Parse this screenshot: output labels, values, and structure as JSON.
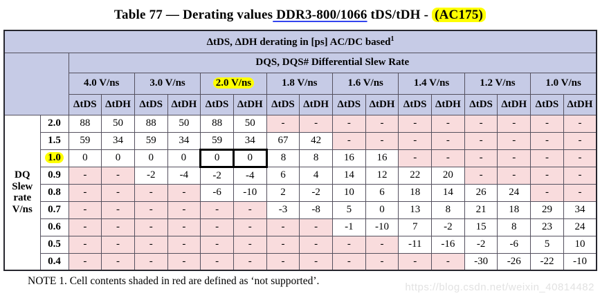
{
  "page": {
    "title": {
      "prefix": "Table 77 — Derating values",
      "link": " DDR3-800/1066",
      "suffix": " tDS/tDH - ",
      "highlight": "(AC175)"
    },
    "note": "NOTE 1. Cell contents shaded in red are defined as ‘not supported’.",
    "watermark": "https://blog.csdn.net/weixin_40814482"
  },
  "table": {
    "header1": "ΔtDS, ΔDH derating in [ps]  AC/DC based",
    "header1_superscript": "1",
    "header2": "DQS, DQS# Differential Slew Rate",
    "axis_label_lines": [
      "DQ",
      "Slew",
      "rate",
      "V/ns"
    ],
    "subheader_labels": {
      "tds": "ΔtDS",
      "tdh": "ΔtDH"
    },
    "col_groups": [
      {
        "label": "4.0 V/ns",
        "highlight": false
      },
      {
        "label": "3.0 V/ns",
        "highlight": false
      },
      {
        "label": "2.0 V/ns",
        "highlight": true
      },
      {
        "label": "1.8 V/ns",
        "highlight": false
      },
      {
        "label": "1.6 V/ns",
        "highlight": false
      },
      {
        "label": "1.4 V/ns",
        "highlight": false
      },
      {
        "label": "1.2 V/ns",
        "highlight": false
      },
      {
        "label": "1.0 V/ns",
        "highlight": false
      }
    ],
    "rows": [
      {
        "label": "2.0",
        "highlight": false,
        "boxed": [],
        "cells": [
          "88",
          "50",
          "88",
          "50",
          "88",
          "50",
          "-",
          "-",
          "-",
          "-",
          "-",
          "-",
          "-",
          "-",
          "-",
          "-"
        ]
      },
      {
        "label": "1.5",
        "highlight": false,
        "boxed": [],
        "cells": [
          "59",
          "34",
          "59",
          "34",
          "59",
          "34",
          "67",
          "42",
          "-",
          "-",
          "-",
          "-",
          "-",
          "-",
          "-",
          "-"
        ]
      },
      {
        "label": "1.0",
        "highlight": true,
        "boxed": [
          4,
          5
        ],
        "cells": [
          "0",
          "0",
          "0",
          "0",
          "0",
          "0",
          "8",
          "8",
          "16",
          "16",
          "-",
          "-",
          "-",
          "-",
          "-",
          "-"
        ]
      },
      {
        "label": "0.9",
        "highlight": false,
        "boxed": [],
        "cells": [
          "-",
          "-",
          "-2",
          "-4",
          "-2",
          "-4",
          "6",
          "4",
          "14",
          "12",
          "22",
          "20",
          "-",
          "-",
          "-",
          "-"
        ]
      },
      {
        "label": "0.8",
        "highlight": false,
        "boxed": [],
        "cells": [
          "-",
          "-",
          "-",
          "-",
          "-6",
          "-10",
          "2",
          "-2",
          "10",
          "6",
          "18",
          "14",
          "26",
          "24",
          "-",
          "-"
        ]
      },
      {
        "label": "0.7",
        "highlight": false,
        "boxed": [],
        "cells": [
          "-",
          "-",
          "-",
          "-",
          "-",
          "-",
          "-3",
          "-8",
          "5",
          "0",
          "13",
          "8",
          "21",
          "18",
          "29",
          "34"
        ]
      },
      {
        "label": "0.6",
        "highlight": false,
        "boxed": [],
        "cells": [
          "-",
          "-",
          "-",
          "-",
          "-",
          "-",
          "-",
          "-",
          "-1",
          "-10",
          "7",
          "-2",
          "15",
          "8",
          "23",
          "24"
        ]
      },
      {
        "label": "0.5",
        "highlight": false,
        "boxed": [],
        "cells": [
          "-",
          "-",
          "-",
          "-",
          "-",
          "-",
          "-",
          "-",
          "-",
          "-",
          "-11",
          "-16",
          "-2",
          "-6",
          "5",
          "10"
        ]
      },
      {
        "label": "0.4",
        "highlight": false,
        "boxed": [],
        "cells": [
          "-",
          "-",
          "-",
          "-",
          "-",
          "-",
          "-",
          "-",
          "-",
          "-",
          "-",
          "-",
          "-30",
          "-26",
          "-22",
          "-10"
        ]
      }
    ],
    "colors": {
      "header_bg": "#c6cbe6",
      "not_supported_bg": "#f9dcdd",
      "highlight_bg": "#ffff00",
      "link_underline": "#3344ee"
    }
  }
}
